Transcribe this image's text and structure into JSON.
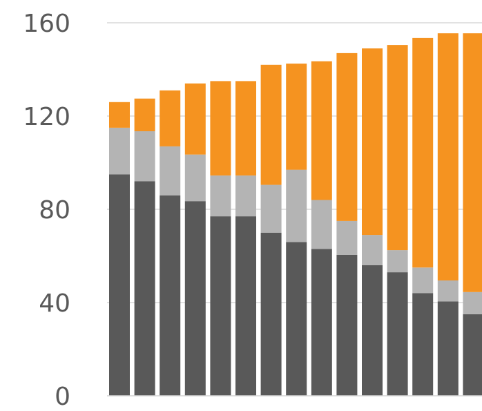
{
  "chart_data": {
    "type": "bar",
    "stacked": true,
    "title": "",
    "xlabel": "",
    "ylabel": "",
    "ylim": [
      0,
      160
    ],
    "yticks": [
      0,
      40,
      80,
      120,
      160
    ],
    "grid": true,
    "categories": [
      "",
      "",
      "",
      "",
      "",
      "",
      "",
      "",
      "",
      "",
      "",
      "",
      "",
      "",
      ""
    ],
    "series": [
      {
        "color": "#595959",
        "values": [
          95,
          92,
          86,
          83.5,
          77,
          77,
          70,
          66,
          63,
          60.5,
          56,
          53,
          44,
          40.5,
          35
        ]
      },
      {
        "color": "#b4b4b4",
        "values": [
          20,
          21.5,
          21,
          20,
          17.5,
          17.5,
          20.5,
          31,
          21,
          14.5,
          13,
          9.5,
          11,
          9,
          9.5
        ]
      },
      {
        "color": "#f59320",
        "values": [
          11,
          14,
          24,
          30.5,
          40.5,
          40.5,
          51.5,
          45.5,
          59.5,
          72,
          80,
          88,
          98.5,
          106,
          111
        ]
      }
    ]
  }
}
